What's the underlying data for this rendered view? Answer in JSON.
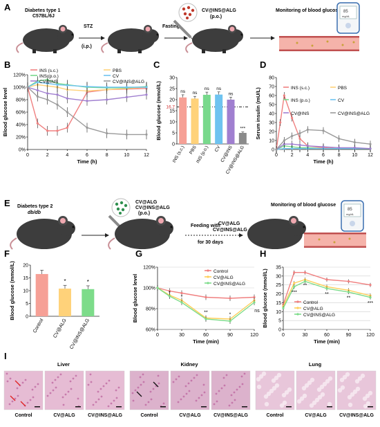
{
  "panel_A": {
    "letter": "A",
    "step1": [
      "Diabetes type 1",
      "C57BL/6J"
    ],
    "step2_top": "STZ",
    "step2_bottom": "(i.p.)",
    "step3": "Fasting",
    "drug": [
      "CV@INS@ALG",
      "(p.o.)"
    ],
    "step4": "Monitoring of blood glucose",
    "meter": [
      "85",
      "mg/dL"
    ]
  },
  "panel_E": {
    "letter": "E",
    "step1": [
      "Diabetes type 2",
      "db/db"
    ],
    "drug": [
      "CV@ALG",
      "CV@INS@ALG",
      "(p.o.)"
    ],
    "feeding": [
      "Feeding with",
      "CV@ALG",
      "CV@INS@ALG"
    ],
    "duration": "for 30 days",
    "step4": "Monitoring of blood glucose",
    "meter": [
      "85",
      "mg/dL"
    ]
  },
  "panel_I": {
    "letter": "I",
    "organs": [
      "Liver",
      "Kidney",
      "Lung"
    ],
    "groups": [
      "Control",
      "CV@ALG",
      "CV@INS@ALG"
    ],
    "tissue_colors": [
      "#e6bcd4",
      "#dcb2cc",
      "#e8c6da"
    ]
  },
  "colors": {
    "ins_sc": "#f08080",
    "pbs": "#ffd27a",
    "ins_po": "#78d98c",
    "cv": "#6ec3f0",
    "cv_ins": "#a07fd0",
    "cv_ins_alg": "#9a9a9a",
    "control": "#f08080",
    "cv_alg": "#ffcf5a",
    "cv_ins_alg_green": "#7ddc8a"
  },
  "chart_data": [
    {
      "panel": "B",
      "type": "line",
      "ylabel": "Blood glucose level",
      "xlabel": "Time (h)",
      "ylim": [
        0,
        120
      ],
      "xlim": [
        0,
        12
      ],
      "yticks": [
        "0%",
        "20%",
        "40%",
        "60%",
        "80%",
        "100%",
        "120%"
      ],
      "xticks": [
        "0",
        "2",
        "4",
        "6",
        "8",
        "10",
        "12"
      ],
      "legend": [
        [
          "INS (s.c.)",
          "PBS"
        ],
        [
          "INS (p.o.)",
          "CV"
        ],
        [
          "CV@INS",
          "CV@INS@ALG"
        ]
      ],
      "series": [
        {
          "name": "INS (s.c.)",
          "color": "#f08080",
          "x": [
            0,
            1,
            2,
            3,
            4,
            6,
            8,
            10,
            12
          ],
          "y": [
            100,
            42,
            30,
            30,
            35,
            92,
            96,
            97,
            98
          ]
        },
        {
          "name": "PBS",
          "color": "#ffd27a",
          "x": [
            0,
            1,
            2,
            3,
            4,
            6,
            8,
            10,
            12
          ],
          "y": [
            100,
            104,
            102,
            100,
            96,
            94,
            96,
            98,
            100
          ]
        },
        {
          "name": "INS (p.o.)",
          "color": "#78d98c",
          "x": [
            0,
            1,
            2,
            3,
            4,
            6,
            8,
            10,
            12
          ],
          "y": [
            100,
            110,
            112,
            106,
            104,
            100,
            99,
            99,
            101
          ]
        },
        {
          "name": "CV",
          "color": "#6ec3f0",
          "x": [
            0,
            1,
            2,
            3,
            4,
            6,
            8,
            10,
            12
          ],
          "y": [
            100,
            108,
            106,
            104,
            103,
            101,
            100,
            100,
            100
          ]
        },
        {
          "name": "CV@INS",
          "color": "#a07fd0",
          "x": [
            0,
            1,
            2,
            3,
            4,
            6,
            8,
            10,
            12
          ],
          "y": [
            100,
            95,
            90,
            88,
            82,
            78,
            80,
            84,
            88
          ]
        },
        {
          "name": "CV@INS@ALG",
          "color": "#9a9a9a",
          "x": [
            0,
            1,
            2,
            3,
            4,
            6,
            8,
            10,
            12
          ],
          "y": [
            100,
            85,
            80,
            72,
            60,
            35,
            26,
            24,
            24
          ]
        }
      ]
    },
    {
      "panel": "C",
      "type": "bar",
      "ylabel": "Blood glucose (mmol/L)",
      "ylim": [
        0,
        30
      ],
      "yticks": [
        "0",
        "5",
        "10",
        "15",
        "20",
        "25",
        "30"
      ],
      "threshold": 16.7,
      "threshold_label": "16.7",
      "categories": [
        "INS (s.c.)",
        "PBS",
        "INS (p.o.)",
        "CV",
        "CV@INS",
        "CV@INS@ALG"
      ],
      "values": [
        21,
        20.5,
        22.2,
        22.3,
        20,
        5
      ],
      "errors": [
        1.2,
        1.0,
        1.2,
        1.2,
        1.1,
        0.4
      ],
      "colors": [
        "#f6a096",
        "#ffd27a",
        "#78d98c",
        "#6ec3f0",
        "#a07fd0",
        "#8a8a8a"
      ],
      "annotations": [
        "ns",
        "ns",
        "ns",
        "ns",
        "ns",
        "***"
      ]
    },
    {
      "panel": "D",
      "type": "line",
      "ylabel": "Serum insulin (mU/L)",
      "xlabel": "Time (h)",
      "ylim": [
        0,
        80
      ],
      "xlim": [
        0,
        12
      ],
      "yticks": [
        "0",
        "10",
        "20",
        "30",
        "40",
        "50",
        "60",
        "70",
        "80"
      ],
      "xticks": [
        "0",
        "2",
        "4",
        "6",
        "8",
        "10",
        "12"
      ],
      "legend": [
        [
          "INS (s.c.)",
          "PBS"
        ],
        [
          "INS (p.o.)",
          "CV"
        ],
        [
          "CV@INS",
          "CV@INS@ALG"
        ]
      ],
      "series": [
        {
          "name": "INS (s.c.)",
          "color": "#f08080",
          "x": [
            0,
            0.5,
            1,
            2,
            3,
            4,
            6,
            8,
            10,
            12
          ],
          "y": [
            0,
            30,
            60,
            35,
            12,
            4,
            2,
            1,
            1,
            1
          ]
        },
        {
          "name": "PBS",
          "color": "#ffd27a",
          "x": [
            0,
            1,
            2,
            3,
            4,
            6,
            8,
            10,
            12
          ],
          "y": [
            0,
            1,
            1,
            1,
            1,
            1,
            1,
            1,
            1
          ]
        },
        {
          "name": "INS (p.o.)",
          "color": "#78d98c",
          "x": [
            0,
            1,
            2,
            3,
            4,
            6,
            8,
            10,
            12
          ],
          "y": [
            0,
            4,
            3,
            2,
            2,
            1,
            1,
            1,
            1
          ]
        },
        {
          "name": "CV",
          "color": "#6ec3f0",
          "x": [
            0,
            1,
            2,
            3,
            4,
            6,
            8,
            10,
            12
          ],
          "y": [
            0,
            1,
            1,
            1,
            1,
            1,
            1,
            1,
            1
          ]
        },
        {
          "name": "CV@INS",
          "color": "#a07fd0",
          "x": [
            0,
            1,
            2,
            3,
            4,
            6,
            8,
            10,
            12
          ],
          "y": [
            0,
            6,
            6,
            5,
            4,
            3,
            2,
            2,
            1
          ]
        },
        {
          "name": "CV@INS@ALG",
          "color": "#9a9a9a",
          "x": [
            0,
            1,
            2,
            3,
            4,
            6,
            8,
            10,
            12
          ],
          "y": [
            0,
            10,
            15,
            18,
            22,
            21,
            12,
            8,
            6
          ]
        }
      ]
    },
    {
      "panel": "F",
      "type": "bar",
      "ylabel": "Blood glucose (mmol/L)",
      "ylim": [
        0,
        20
      ],
      "yticks": [
        "0",
        "5",
        "10",
        "15",
        "20"
      ],
      "categories": [
        "Control",
        "CV@ALG",
        "CV@INS@ALG"
      ],
      "values": [
        16.5,
        10.8,
        10.6
      ],
      "errors": [
        1.5,
        1.3,
        1.3
      ],
      "colors": [
        "#f6a096",
        "#ffd27a",
        "#7ddc8a"
      ],
      "annotations": [
        "",
        "*",
        "*"
      ]
    },
    {
      "panel": "G",
      "type": "line",
      "ylabel": "Blood glucose level",
      "xlabel": "Time (min)",
      "ylim": [
        60,
        120
      ],
      "xlim": [
        0,
        120
      ],
      "yticks": [
        "60%",
        "80%",
        "100%",
        "120%"
      ],
      "xticks": [
        "0",
        "30",
        "60",
        "90",
        "120"
      ],
      "legend": [
        "Control",
        "CV@ALG",
        "CV@INS@ALG"
      ],
      "series": [
        {
          "name": "Control",
          "color": "#f08080",
          "x": [
            0,
            15,
            30,
            60,
            90,
            120
          ],
          "y": [
            100,
            97,
            95,
            91,
            90,
            91
          ]
        },
        {
          "name": "CV@ALG",
          "color": "#ffcf5a",
          "x": [
            0,
            15,
            30,
            60,
            90,
            120
          ],
          "y": [
            100,
            93,
            88,
            71,
            70,
            88
          ]
        },
        {
          "name": "CV@INS@ALG",
          "color": "#7ddc8a",
          "x": [
            0,
            15,
            30,
            60,
            90,
            120
          ],
          "y": [
            100,
            92,
            86,
            70,
            68,
            86
          ]
        }
      ],
      "annotations": [
        "*",
        "*",
        "**",
        "*",
        "ns"
      ]
    },
    {
      "panel": "H",
      "type": "line",
      "ylabel": "Blood glucose (mmol/L)",
      "xlabel": "Time (min)",
      "ylim": [
        0,
        35
      ],
      "xlim": [
        0,
        120
      ],
      "yticks": [
        "0",
        "5",
        "10",
        "15",
        "20",
        "25",
        "30",
        "35"
      ],
      "xticks": [
        "0",
        "30",
        "60",
        "90",
        "120"
      ],
      "legend": [
        "Control",
        "CV@ALG",
        "CV@INS@ALG"
      ],
      "series": [
        {
          "name": "Control",
          "color": "#f08080",
          "x": [
            0,
            15,
            30,
            60,
            90,
            120
          ],
          "y": [
            14,
            32,
            32,
            28,
            27,
            25
          ]
        },
        {
          "name": "CV@ALG",
          "color": "#ffcf5a",
          "x": [
            0,
            15,
            30,
            60,
            90,
            120
          ],
          "y": [
            13,
            26,
            28,
            24,
            22,
            19
          ]
        },
        {
          "name": "CV@INS@ALG",
          "color": "#7ddc8a",
          "x": [
            0,
            15,
            30,
            60,
            90,
            120
          ],
          "y": [
            12,
            24,
            27,
            23,
            21,
            18
          ]
        }
      ],
      "annotations": [
        "***",
        "**",
        "**",
        "**",
        "***"
      ]
    }
  ]
}
